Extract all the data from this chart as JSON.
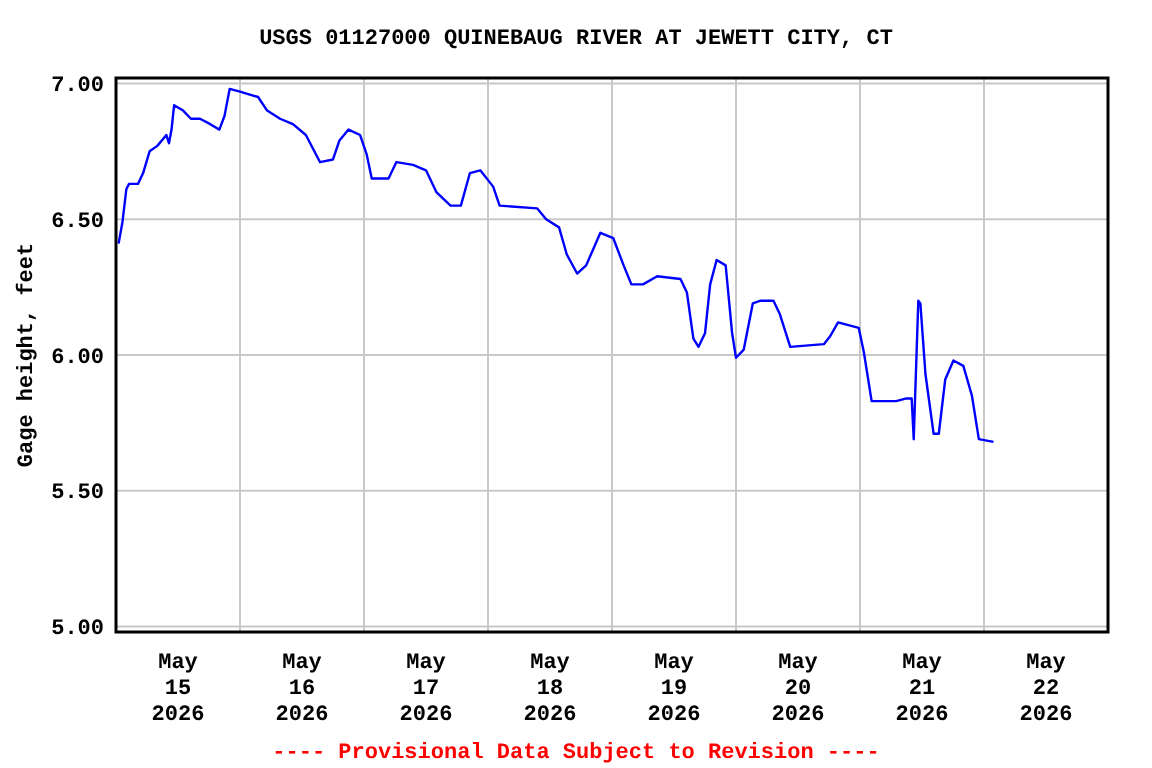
{
  "chart_data": {
    "type": "line",
    "title": "USGS 01127000 QUINEBAUG RIVER AT JEWETT CITY, CT",
    "ylabel": "Gage height, feet",
    "annotations": [
      "---- Provisional Data Subject to Revision ----"
    ],
    "x": [
      "2026-05-15T00:30",
      "2026-05-15T01:15",
      "2026-05-15T02:00",
      "2026-05-15T02:30",
      "2026-05-15T04:15",
      "2026-05-15T05:15",
      "2026-05-15T06:30",
      "2026-05-15T08:00",
      "2026-05-15T09:45",
      "2026-05-15T10:15",
      "2026-05-15T10:45",
      "2026-05-15T11:15",
      "2026-05-15T13:00",
      "2026-05-15T14:30",
      "2026-05-15T16:15",
      "2026-05-15T18:15",
      "2026-05-15T20:00",
      "2026-05-15T21:00",
      "2026-05-15T22:00",
      "2026-05-16T00:00",
      "2026-05-16T03:30",
      "2026-05-16T05:15",
      "2026-05-16T07:45",
      "2026-05-16T10:15",
      "2026-05-16T12:45",
      "2026-05-16T15:30",
      "2026-05-16T18:00",
      "2026-05-16T19:15",
      "2026-05-16T21:00",
      "2026-05-16T23:15",
      "2026-05-17T00:30",
      "2026-05-17T01:30",
      "2026-05-17T04:45",
      "2026-05-17T06:15",
      "2026-05-17T09:30",
      "2026-05-17T12:00",
      "2026-05-17T14:00",
      "2026-05-17T16:45",
      "2026-05-17T18:45",
      "2026-05-17T20:30",
      "2026-05-17T22:30",
      "2026-05-18T01:00",
      "2026-05-18T02:15",
      "2026-05-18T09:30",
      "2026-05-18T11:15",
      "2026-05-18T13:45",
      "2026-05-18T15:15",
      "2026-05-18T17:15",
      "2026-05-18T19:00",
      "2026-05-18T21:45",
      "2026-05-19T00:15",
      "2026-05-19T02:15",
      "2026-05-19T03:45",
      "2026-05-19T06:00",
      "2026-05-19T08:45",
      "2026-05-19T13:15",
      "2026-05-19T14:30",
      "2026-05-19T15:45",
      "2026-05-19T16:45",
      "2026-05-19T18:00",
      "2026-05-19T19:00",
      "2026-05-19T20:15",
      "2026-05-19T22:00",
      "2026-05-19T23:15",
      "2026-05-20T00:00",
      "2026-05-20T01:30",
      "2026-05-20T03:15",
      "2026-05-20T04:45",
      "2026-05-20T07:15",
      "2026-05-20T08:30",
      "2026-05-20T10:30",
      "2026-05-20T17:00",
      "2026-05-20T18:15",
      "2026-05-20T19:45",
      "2026-05-20T23:45",
      "2026-05-21T00:45",
      "2026-05-21T02:15",
      "2026-05-21T07:00",
      "2026-05-21T09:00",
      "2026-05-21T10:00",
      "2026-05-21T10:24",
      "2026-05-21T11:17",
      "2026-05-21T11:41",
      "2026-05-21T12:40",
      "2026-05-21T14:15",
      "2026-05-21T15:15",
      "2026-05-21T16:30",
      "2026-05-21T18:05",
      "2026-05-21T20:00",
      "2026-05-21T21:40",
      "2026-05-21T23:00",
      "2026-05-22T01:50"
    ],
    "series": [
      {
        "color": "#0000ff",
        "values": [
          6.41,
          6.49,
          6.61,
          6.63,
          6.63,
          6.67,
          6.75,
          6.77,
          6.81,
          6.78,
          6.83,
          6.92,
          6.9,
          6.87,
          6.87,
          6.85,
          6.83,
          6.88,
          6.98,
          6.97,
          6.95,
          6.9,
          6.87,
          6.85,
          6.81,
          6.71,
          6.72,
          6.79,
          6.83,
          6.81,
          6.74,
          6.65,
          6.65,
          6.71,
          6.7,
          6.68,
          6.6,
          6.55,
          6.55,
          6.67,
          6.68,
          6.62,
          6.55,
          6.54,
          6.5,
          6.47,
          6.37,
          6.3,
          6.33,
          6.45,
          6.43,
          6.33,
          6.26,
          6.26,
          6.29,
          6.28,
          6.23,
          6.06,
          6.03,
          6.08,
          6.26,
          6.35,
          6.33,
          6.08,
          5.99,
          6.02,
          6.19,
          6.2,
          6.2,
          6.15,
          6.03,
          6.04,
          6.07,
          6.12,
          6.1,
          6.01,
          5.83,
          5.83,
          5.84,
          5.84,
          5.69,
          6.2,
          6.19,
          5.93,
          5.71,
          5.71,
          5.91,
          5.98,
          5.96,
          5.85,
          5.69,
          5.68
        ]
      }
    ],
    "xlim": [
      "2026-05-15T00:00",
      "2026-05-23T00:00"
    ],
    "xticks": [
      {
        "value": "2026-05-15T12:00",
        "label": "May\n15\n2026"
      },
      {
        "value": "2026-05-16T00:00",
        "label": null
      },
      {
        "value": "2026-05-16T12:00",
        "label": "May\n16\n2026"
      },
      {
        "value": "2026-05-17T00:00",
        "label": null
      },
      {
        "value": "2026-05-17T12:00",
        "label": "May\n17\n2026"
      },
      {
        "value": "2026-05-18T00:00",
        "label": null
      },
      {
        "value": "2026-05-18T12:00",
        "label": "May\n18\n2026"
      },
      {
        "value": "2026-05-19T00:00",
        "label": null
      },
      {
        "value": "2026-05-19T12:00",
        "label": "May\n19\n2026"
      },
      {
        "value": "2026-05-20T00:00",
        "label": null
      },
      {
        "value": "2026-05-20T12:00",
        "label": "May\n20\n2026"
      },
      {
        "value": "2026-05-21T00:00",
        "label": null
      },
      {
        "value": "2026-05-21T12:00",
        "label": "May\n21\n2026"
      },
      {
        "value": "2026-05-22T00:00",
        "label": null
      },
      {
        "value": "2026-05-22T12:00",
        "label": "May\n22\n2026"
      }
    ],
    "ylim": [
      4.98,
      7.02
    ],
    "yticks": [
      {
        "value": 5,
        "label": "5.00"
      },
      {
        "value": 5.5,
        "label": "5.50"
      },
      {
        "value": 6,
        "label": "6.00"
      },
      {
        "value": 6.5,
        "label": "6.50"
      },
      {
        "value": 7,
        "label": "7.00"
      }
    ],
    "grid": true,
    "marker": "none",
    "line_style": "solid"
  }
}
